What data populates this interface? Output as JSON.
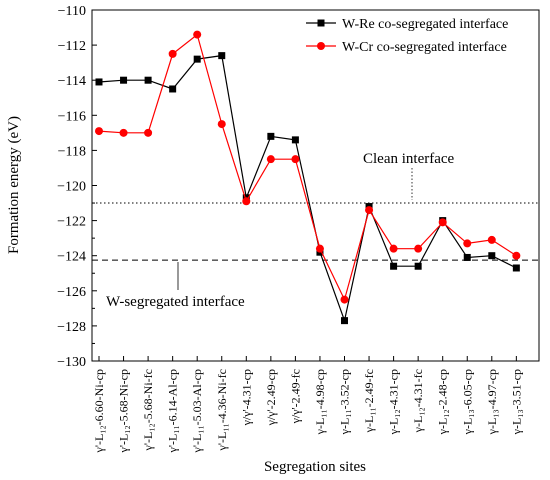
{
  "chart_data": {
    "type": "line",
    "xlabel": "Segregation sites",
    "ylabel": "Formation energy (eV)",
    "ylim": [
      -130,
      -110
    ],
    "yticks": [
      -130,
      -128,
      -126,
      -124,
      -122,
      -120,
      -118,
      -116,
      -114,
      -112,
      -110
    ],
    "categories": [
      "γ'-L₁₂-6.60-Ni-cp",
      "γ'-L₁₂-5.68-Ni-cp",
      "γ'-L₁₂-5.68-Ni-fc",
      "γ'-L₁₁-6.14-Al-cp",
      "γ'-L₁₁-5.03-Al-cp",
      "γ'-L₁₁-4.36-Ni-fc",
      "γ/γ'-4.31-cp",
      "γ/γ'-2.49-cp",
      "γ/γ'-2.49-fc",
      "γ-L₁₁-4.98-cp",
      "γ-L₁₁-3.52-cp",
      "γ-L₁₁-2.49-fc",
      "γ-L₁₂-4.31-cp",
      "γ-L₁₂-4.31-fc",
      "γ-L₁₂-2.48-cp",
      "γ-L₁₃-6.05-cp",
      "γ-L₁₃-4.97-cp",
      "γ-L₁₃-3.51-cp"
    ],
    "series": [
      {
        "name": "W-Re co-segregated interface",
        "color": "#000000",
        "marker": "square",
        "values": [
          -114.1,
          -114.0,
          -114.0,
          -114.5,
          -112.8,
          -112.6,
          -120.7,
          -117.2,
          -117.4,
          -123.8,
          -127.7,
          -121.2,
          -124.6,
          -124.6,
          -122.0,
          -124.1,
          -124.0,
          -124.7
        ]
      },
      {
        "name": "W-Cr co-segregated interface",
        "color": "#ff0000",
        "marker": "circle",
        "values": [
          -116.9,
          -117.0,
          -117.0,
          -112.5,
          -111.4,
          -116.5,
          -120.9,
          -118.5,
          -118.5,
          -123.6,
          -126.5,
          -121.4,
          -123.6,
          -123.6,
          -122.1,
          -123.3,
          -123.1,
          -124.0
        ]
      }
    ],
    "reference_lines": [
      {
        "label": "Clean interface",
        "value": -121.0,
        "style": "dotted"
      },
      {
        "label": "W-segregated interface",
        "value": -124.25,
        "style": "dashed"
      }
    ],
    "legend_position": "top-right",
    "grid": false
  }
}
